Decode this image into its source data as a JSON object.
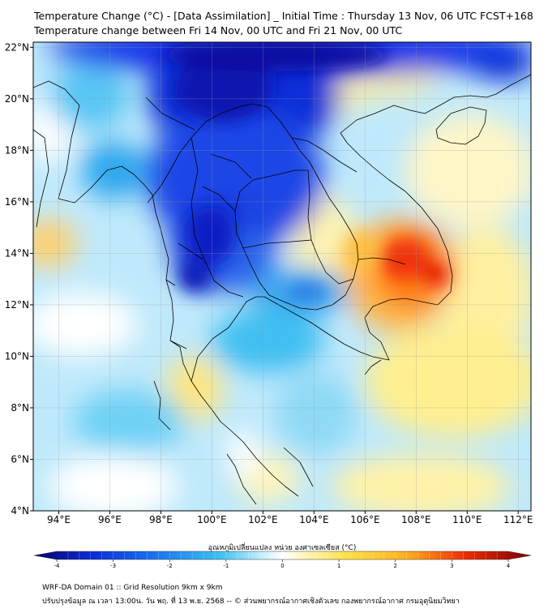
{
  "title": {
    "line1": "Temperature Change (°C) - [Data Assimilation] _ Initial Time : Thursday 13 Nov, 06 UTC FCST+168",
    "line2": "Temperature change between Fri 14 Nov, 00 UTC and Fri 21 Nov, 00 UTC"
  },
  "map": {
    "lon_range": [
      93,
      112.5
    ],
    "lat_range": [
      4,
      22.2
    ],
    "lon_ticks": [
      "94°E",
      "96°E",
      "98°E",
      "100°E",
      "102°E",
      "104°E",
      "106°E",
      "108°E",
      "110°E",
      "112°E"
    ],
    "lat_ticks": [
      "22°N",
      "20°N",
      "18°N",
      "16°N",
      "14°N",
      "12°N",
      "10°N",
      "8°N",
      "6°N",
      "4°N"
    ],
    "grid": true
  },
  "colorbar": {
    "title": "อุณหภูมิเปลี่ยนแปลง หน่วย องศาเซลเซียส (°C)",
    "ticks": [
      "-4",
      "-3",
      "-2",
      "-1",
      "0",
      "1",
      "2",
      "3",
      "4"
    ],
    "range": [
      -4,
      4
    ],
    "colors": {
      "very_cold": "#0a0f9e",
      "cold": "#1e5fe0",
      "cool": "#33b8f0",
      "neutral": "#ffffff",
      "warm": "#ffe45a",
      "hot": "#ff8a1a",
      "very_hot": "#d80000"
    }
  },
  "footer": {
    "line1": "WRF-DA Domain 01 :: Grid Resolution 9km x 9km",
    "line2": "ปรับปรุงข้อมูล ณ เวลา 13:00น. วัน พฤ. ที่ 13 พ.ย. 2568 -- © ส่วนพยากรณ์อากาศเชิงตัวเลข กองพยากรณ์อากาศ กรมอุตุนิยมวิทยา"
  }
}
